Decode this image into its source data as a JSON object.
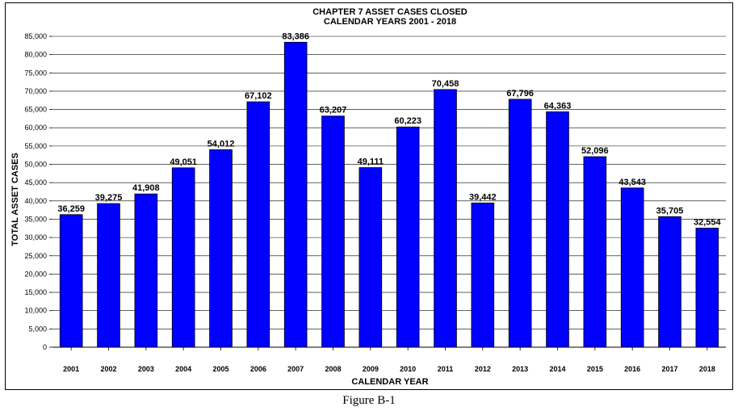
{
  "chart_data": {
    "type": "bar",
    "title": "CHAPTER 7 ASSET CASES CLOSED",
    "subtitle": "CALENDAR YEARS 2001 - 2018",
    "xlabel": "CALENDAR YEAR",
    "ylabel": "TOTAL ASSET CASES",
    "categories": [
      "2001",
      "2002",
      "2003",
      "2004",
      "2005",
      "2006",
      "2007",
      "2008",
      "2009",
      "2010",
      "2011",
      "2012",
      "2013",
      "2014",
      "2015",
      "2016",
      "2017",
      "2018"
    ],
    "values": [
      36259,
      39275,
      41908,
      49051,
      54012,
      67102,
      83386,
      63207,
      49111,
      60223,
      70458,
      39442,
      67796,
      64363,
      52096,
      43543,
      35705,
      32554
    ],
    "value_labels": [
      "36,259",
      "39,275",
      "41,908",
      "49,051",
      "54,012",
      "67,102",
      "83,386",
      "63,207",
      "49,111",
      "60,223",
      "70,458",
      "39,442",
      "67,796",
      "64,363",
      "52,096",
      "43,543",
      "35,705",
      "32,554"
    ],
    "yticks": [
      "0",
      "5,000",
      "10,000",
      "15,000",
      "20,000",
      "25,000",
      "30,000",
      "35,000",
      "40,000",
      "45,000",
      "50,000",
      "55,000",
      "60,000",
      "65,000",
      "70,000",
      "75,000",
      "80,000",
      "85,000"
    ],
    "ylim": [
      0,
      85000
    ],
    "grid": true,
    "bar_color": "#0000ff"
  },
  "caption": "Figure B-1"
}
